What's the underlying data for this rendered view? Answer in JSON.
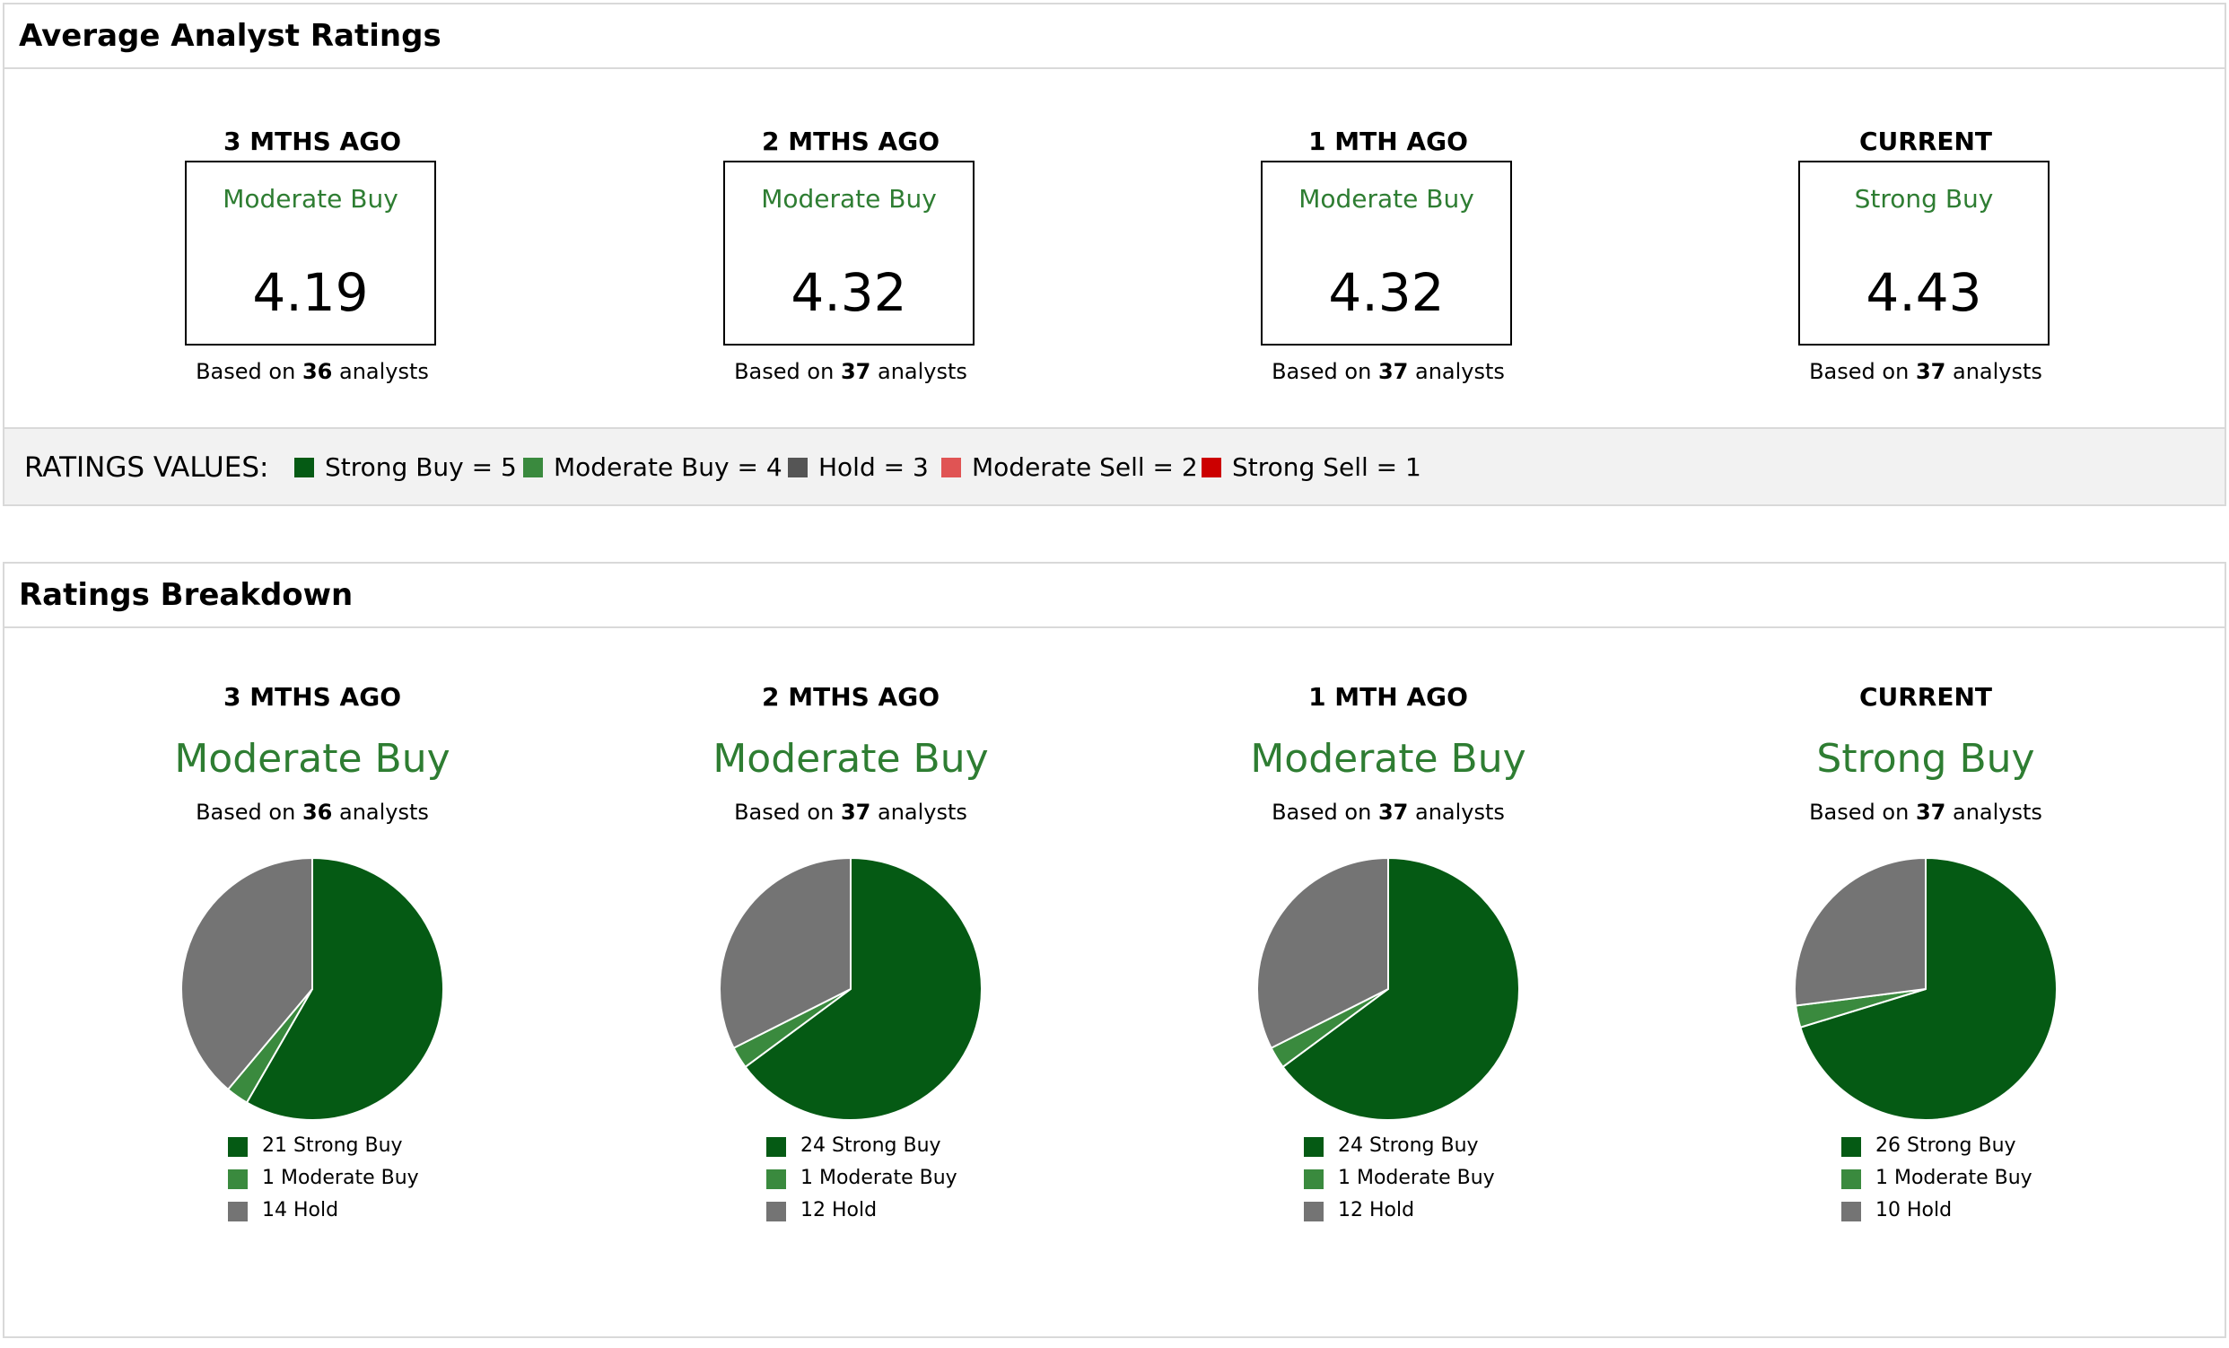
{
  "average_panel": {
    "title": "Average Analyst Ratings",
    "columns": [
      {
        "period": "3 MTHS AGO",
        "rating": "Moderate Buy",
        "value": "4.19",
        "based_prefix": "Based on",
        "analysts": "36",
        "based_suffix": "analysts"
      },
      {
        "period": "2 MTHS AGO",
        "rating": "Moderate Buy",
        "value": "4.32",
        "based_prefix": "Based on",
        "analysts": "37",
        "based_suffix": "analysts"
      },
      {
        "period": "1 MTH AGO",
        "rating": "Moderate Buy",
        "value": "4.32",
        "based_prefix": "Based on",
        "analysts": "37",
        "based_suffix": "analysts"
      },
      {
        "period": "CURRENT",
        "rating": "Strong Buy",
        "value": "4.43",
        "based_prefix": "Based on",
        "analysts": "37",
        "based_suffix": "analysts"
      }
    ],
    "legend": {
      "title": "RATINGS VALUES:",
      "items": [
        {
          "label": "Strong Buy = 5",
          "color": "#055a14"
        },
        {
          "label": "Moderate Buy = 4",
          "color": "#3a8a3e"
        },
        {
          "label": "Hold = 3",
          "color": "#555555"
        },
        {
          "label": "Moderate Sell = 2",
          "color": "#e05454"
        },
        {
          "label": "Strong Sell = 1",
          "color": "#cc0000"
        }
      ]
    }
  },
  "breakdown_panel": {
    "title": "Ratings Breakdown",
    "columns": [
      {
        "period": "3 MTHS AGO",
        "rating": "Moderate Buy",
        "based_prefix": "Based on",
        "analysts": "36",
        "based_suffix": "analysts",
        "legend": [
          "21 Strong Buy",
          "1 Moderate Buy",
          "14 Hold"
        ]
      },
      {
        "period": "2 MTHS AGO",
        "rating": "Moderate Buy",
        "based_prefix": "Based on",
        "analysts": "37",
        "based_suffix": "analysts",
        "legend": [
          "24 Strong Buy",
          "1 Moderate Buy",
          "12 Hold"
        ]
      },
      {
        "period": "1 MTH AGO",
        "rating": "Moderate Buy",
        "based_prefix": "Based on",
        "analysts": "37",
        "based_suffix": "analysts",
        "legend": [
          "24 Strong Buy",
          "1 Moderate Buy",
          "12 Hold"
        ]
      },
      {
        "period": "CURRENT",
        "rating": "Strong Buy",
        "based_prefix": "Based on",
        "analysts": "37",
        "based_suffix": "analysts",
        "legend": [
          "26 Strong Buy",
          "1 Moderate Buy",
          "10 Hold"
        ]
      }
    ]
  },
  "colors": {
    "strong_buy": "#055a14",
    "moderate_buy": "#3a8a3e",
    "hold": "#747474",
    "rating_text": "#2e7d32"
  },
  "chart_data": [
    {
      "type": "pie",
      "categories": [
        "Strong Buy",
        "Moderate Buy",
        "Hold"
      ],
      "values": [
        21,
        1,
        14
      ]
    },
    {
      "type": "pie",
      "categories": [
        "Strong Buy",
        "Moderate Buy",
        "Hold"
      ],
      "values": [
        24,
        1,
        12
      ]
    },
    {
      "type": "pie",
      "categories": [
        "Strong Buy",
        "Moderate Buy",
        "Hold"
      ],
      "values": [
        24,
        1,
        12
      ]
    },
    {
      "type": "pie",
      "categories": [
        "Strong Buy",
        "Moderate Buy",
        "Hold"
      ],
      "values": [
        26,
        1,
        10
      ]
    }
  ]
}
